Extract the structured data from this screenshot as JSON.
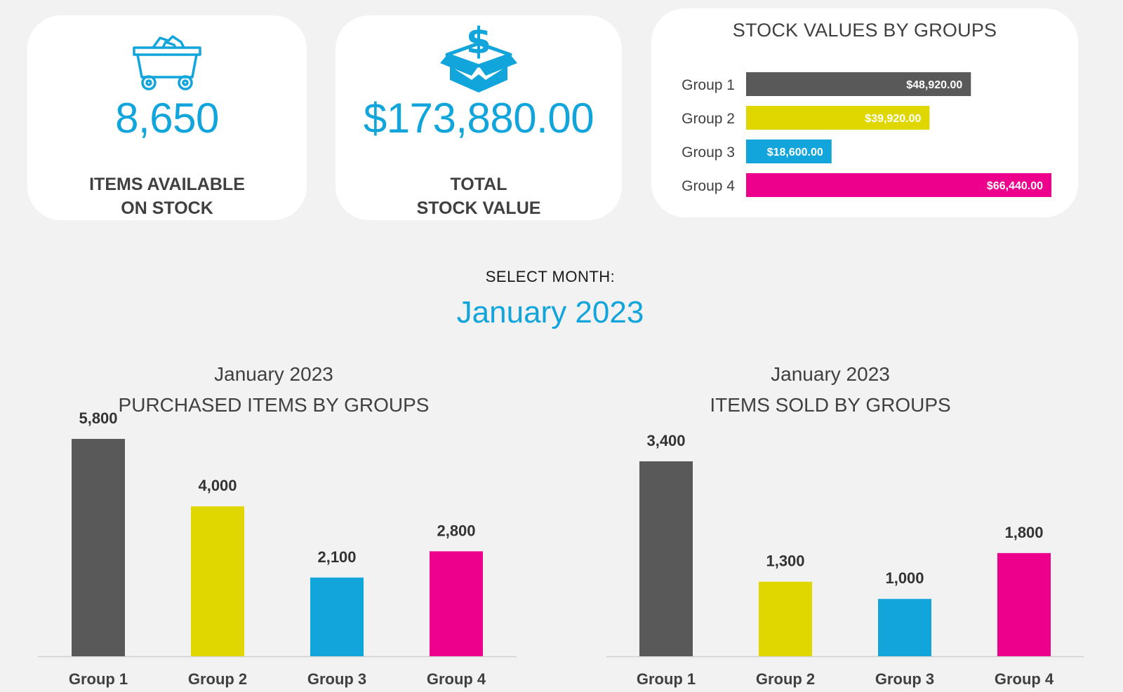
{
  "kpis": {
    "items": {
      "icon": "mining-cart-icon",
      "value": "8,650",
      "label_line1": "ITEMS AVAILABLE",
      "label_line2": "ON STOCK"
    },
    "stock_value": {
      "icon": "dollar-box-icon",
      "value": "$173,880.00",
      "label_line1": "TOTAL",
      "label_line2": "STOCK VALUE"
    }
  },
  "selector": {
    "label": "SELECT MONTH:",
    "value": "January 2023"
  },
  "colors": {
    "group1": "#595959",
    "group2": "#e0d700",
    "group3": "#12a5dc",
    "group4": "#ec008c",
    "accent": "#12a5dc"
  },
  "chart_data": [
    {
      "type": "bar",
      "orientation": "horizontal",
      "title": "STOCK VALUES BY GROUPS",
      "categories": [
        "Group 1",
        "Group 2",
        "Group 3",
        "Group 4"
      ],
      "values": [
        48920,
        39920,
        18600,
        66440
      ],
      "data_labels": [
        "$48,920.00",
        "$39,920.00",
        "$18,600.00",
        "$66,440.00"
      ],
      "colors": [
        "#595959",
        "#e0d700",
        "#12a5dc",
        "#ec008c"
      ]
    },
    {
      "type": "bar",
      "title_line1": "January 2023",
      "title_line2": "PURCHASED ITEMS BY GROUPS",
      "categories": [
        "Group 1",
        "Group 2",
        "Group 3",
        "Group 4"
      ],
      "values": [
        5800,
        4000,
        2100,
        2800
      ],
      "data_labels": [
        "5,800",
        "4,000",
        "2,100",
        "2,800"
      ],
      "colors": [
        "#595959",
        "#e0d700",
        "#12a5dc",
        "#ec008c"
      ]
    },
    {
      "type": "bar",
      "title_line1": "January 2023",
      "title_line2": "ITEMS SOLD BY GROUPS",
      "categories": [
        "Group 1",
        "Group 2",
        "Group 3",
        "Group 4"
      ],
      "values": [
        3400,
        1300,
        1000,
        1800
      ],
      "data_labels": [
        "3,400",
        "1,300",
        "1,000",
        "1,800"
      ],
      "colors": [
        "#595959",
        "#e0d700",
        "#12a5dc",
        "#ec008c"
      ]
    }
  ]
}
